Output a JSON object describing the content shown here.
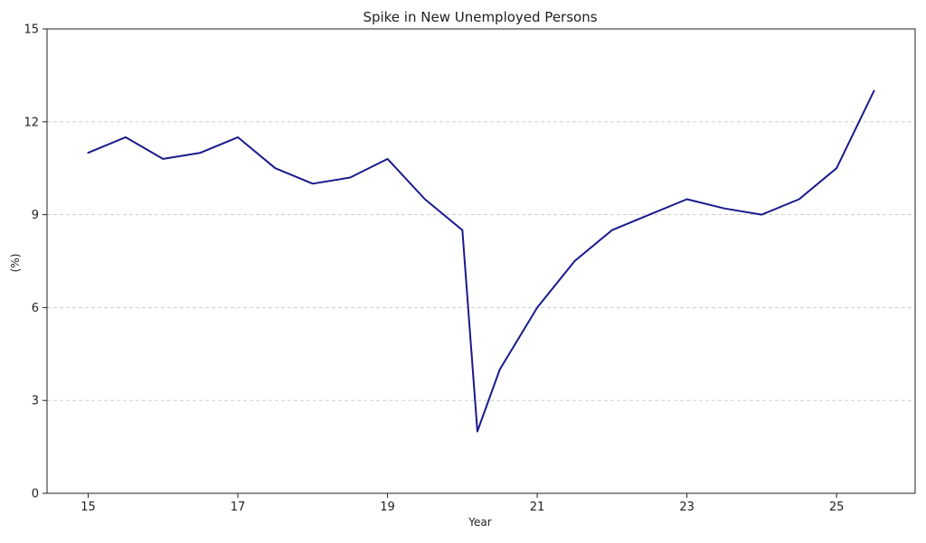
{
  "chart_data": {
    "type": "line",
    "title": "Spike in New Unemployed Persons",
    "xlabel": "Year",
    "ylabel": "(%)",
    "xlim": [
      14.45,
      26.05
    ],
    "ylim": [
      0,
      15
    ],
    "x_ticks": [
      15,
      17,
      19,
      21,
      23,
      25
    ],
    "y_ticks": [
      0,
      3,
      6,
      9,
      12,
      15
    ],
    "grid": "y-dashed",
    "line_color": "#1a1a8c",
    "grid_color": "#c8c8c8",
    "series": [
      {
        "x": [
          15,
          15.5,
          16,
          16.5,
          17,
          17.5,
          18,
          18.5,
          19,
          19.5,
          20,
          20.2,
          20.5,
          21,
          21.5,
          22,
          22.5,
          23,
          23.5,
          24,
          24.5,
          25,
          25.5
        ],
        "values": [
          11.0,
          11.5,
          10.8,
          11.0,
          11.5,
          10.5,
          10.0,
          10.2,
          10.8,
          9.5,
          8.5,
          2.0,
          4.0,
          6.0,
          7.5,
          8.5,
          9.0,
          9.5,
          9.2,
          9.0,
          9.5,
          10.5,
          13.0
        ]
      }
    ]
  }
}
